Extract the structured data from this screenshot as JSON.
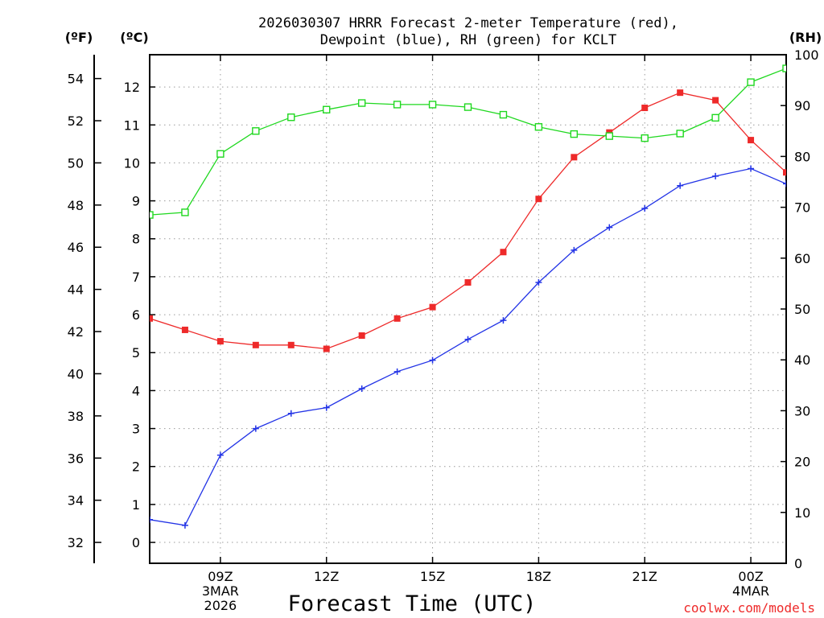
{
  "chart_data": {
    "type": "line",
    "title_line1": "2026030307 HRRR Forecast 2-meter Temperature (red),",
    "title_line2": "Dewpoint (blue), RH (green) for KCLT",
    "xlabel": "Forecast Time (UTC)",
    "credit": "coolwx.com/models",
    "unit_labels": {
      "fahrenheit": "(ºF)",
      "celsius": "(ºC)",
      "rh": "(RH)"
    },
    "x_hours": [
      7,
      8,
      9,
      10,
      11,
      12,
      13,
      14,
      15,
      16,
      17,
      18,
      19,
      20,
      21,
      22,
      23,
      24,
      25
    ],
    "xlim": [
      7,
      25
    ],
    "x_ticks": [
      {
        "hour": 9,
        "lines": [
          "09Z",
          "3MAR",
          "2026"
        ]
      },
      {
        "hour": 12,
        "lines": [
          "12Z"
        ]
      },
      {
        "hour": 15,
        "lines": [
          "15Z"
        ]
      },
      {
        "hour": 18,
        "lines": [
          "18Z"
        ]
      },
      {
        "hour": 21,
        "lines": [
          "21Z"
        ]
      },
      {
        "hour": 24,
        "lines": [
          "00Z",
          "4MAR"
        ]
      }
    ],
    "celsius_axis": {
      "ylim": [
        -0.55,
        12.85
      ],
      "ticks": [
        0,
        1,
        2,
        3,
        4,
        5,
        6,
        7,
        8,
        9,
        10,
        11,
        12
      ]
    },
    "fahrenheit_axis": {
      "ticks": [
        32,
        34,
        36,
        38,
        40,
        42,
        44,
        46,
        48,
        50,
        52,
        54
      ]
    },
    "rh_axis": {
      "ylim": [
        0,
        100
      ],
      "ticks": [
        0,
        10,
        20,
        30,
        40,
        50,
        60,
        70,
        80,
        90,
        100
      ]
    },
    "series": [
      {
        "name": "Temperature",
        "unit": "C",
        "color": "#ee2a2a",
        "marker": "filled-square",
        "values": [
          5.9,
          5.6,
          5.3,
          5.2,
          5.2,
          5.1,
          5.45,
          5.9,
          6.2,
          6.85,
          7.65,
          9.05,
          10.15,
          10.8,
          11.45,
          11.85,
          11.65,
          10.6,
          9.75
        ]
      },
      {
        "name": "Dewpoint",
        "unit": "C",
        "color": "#2233e6",
        "marker": "plus",
        "values": [
          0.6,
          0.45,
          2.3,
          3.0,
          3.4,
          3.55,
          4.05,
          4.5,
          4.8,
          5.35,
          5.85,
          6.85,
          7.7,
          8.3,
          8.8,
          9.4,
          9.65,
          9.85,
          9.45
        ]
      },
      {
        "name": "RH",
        "unit": "%",
        "color": "#1fd81f",
        "marker": "open-square",
        "values": [
          68.5,
          69.0,
          80.5,
          85.0,
          87.7,
          89.2,
          90.5,
          90.2,
          90.2,
          89.7,
          88.2,
          85.8,
          84.4,
          84.0,
          83.6,
          84.5,
          87.6,
          94.6,
          97.3
        ]
      }
    ]
  }
}
